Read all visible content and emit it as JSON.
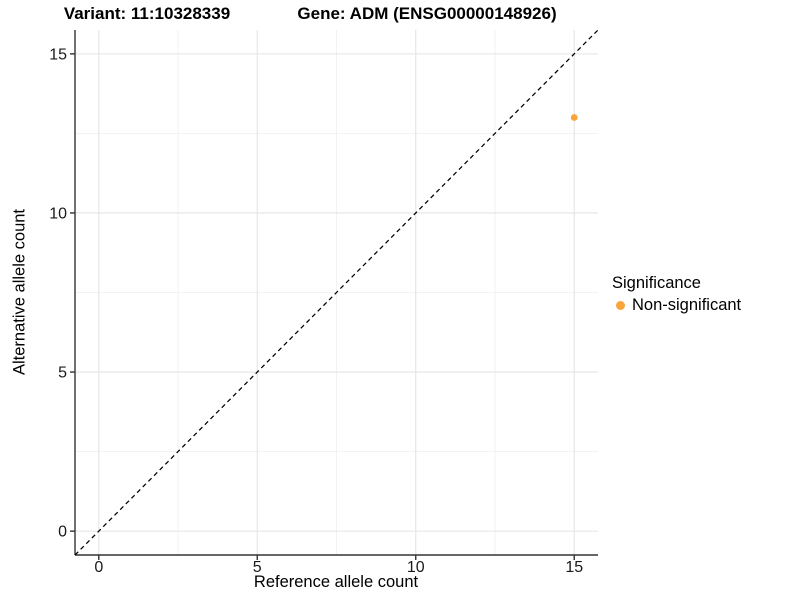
{
  "chart_data": {
    "type": "scatter",
    "title_variant": "Variant: 11:10328339",
    "title_gene": "Gene: ADM (ENSG00000148926)",
    "xlabel": "Reference allele count",
    "ylabel": "Alternative allele count",
    "legend_title": "Significance",
    "legend_position": "right",
    "xlim": [
      -0.75,
      15.75
    ],
    "ylim": [
      -0.75,
      15.75
    ],
    "x_major_ticks": [
      0,
      5,
      10,
      15
    ],
    "y_major_ticks": [
      0,
      5,
      10,
      15
    ],
    "x_minor_gridlines": [
      2.5,
      7.5,
      12.5
    ],
    "y_minor_gridlines": [
      2.5,
      7.5,
      12.5
    ],
    "grid": "on",
    "reference_line": {
      "style": "dashed",
      "color": "#000000",
      "from": [
        -0.75,
        -0.75
      ],
      "to": [
        15.75,
        15.75
      ]
    },
    "series": [
      {
        "name": "Non-significant",
        "color": "#FAA43C",
        "points": [
          [
            15,
            13
          ]
        ]
      }
    ]
  },
  "colors": {
    "background": "#FFFFFF",
    "grid_major": "#E4E4E4",
    "grid_minor": "#EFEFEF",
    "axis_line": "#333333",
    "tick_mark": "#333333",
    "tick_text": "#1A1A1A",
    "point": "#FAA43C"
  }
}
